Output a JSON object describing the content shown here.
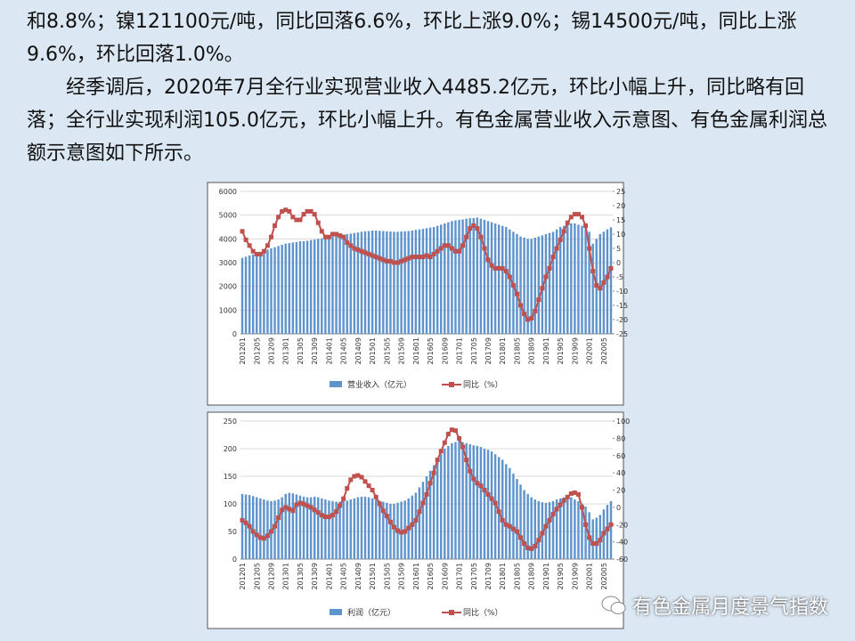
{
  "paragraphs": [
    "和8.8%；镍121100元/吨，同比回落6.6%，环比上涨9.0%；锡14500元/吨，同比上涨9.6%，环比回落1.0%。",
    "经季调后，2020年7月全行业实现营业收入4485.2亿元，环比小幅上升，同比略有回落；全行业实现利润105.0亿元，环比小幅上升。有色金属营业收入示意图、有色金属利润总额示意图如下所示。"
  ],
  "chart_data": [
    {
      "type": "combo",
      "grid": true,
      "categories": [
        "201201",
        null,
        null,
        null,
        "201205",
        null,
        null,
        null,
        "201209",
        null,
        null,
        null,
        "201301",
        null,
        null,
        null,
        "201305",
        null,
        null,
        null,
        "201309",
        null,
        null,
        null,
        "201401",
        null,
        null,
        null,
        "201405",
        null,
        null,
        null,
        "201409",
        null,
        null,
        null,
        "201501",
        null,
        null,
        null,
        "201505",
        null,
        null,
        null,
        "201509",
        null,
        null,
        null,
        "201601",
        null,
        null,
        null,
        "201605",
        null,
        null,
        null,
        "201609",
        null,
        null,
        null,
        "201701",
        null,
        null,
        null,
        "201705",
        null,
        null,
        null,
        "201709",
        null,
        null,
        null,
        "201801",
        null,
        null,
        null,
        "201805",
        null,
        null,
        null,
        "201809",
        null,
        null,
        null,
        "201901",
        null,
        null,
        null,
        "201905",
        null,
        null,
        null,
        "201909",
        null,
        null,
        null,
        "202001",
        null,
        null,
        null,
        "202005",
        null,
        null
      ],
      "ylim": [
        0,
        6000
      ],
      "yticks": [
        0,
        1000,
        2000,
        3000,
        4000,
        5000,
        6000
      ],
      "y2lim": [
        -25,
        25
      ],
      "y2ticks": [
        -25,
        -20,
        -15,
        -10,
        -5,
        0,
        5,
        10,
        15,
        20,
        25
      ],
      "series": [
        {
          "name": "营业收入（亿元）",
          "type": "bar",
          "color": "#5f93cc",
          "values": [
            3200,
            3250,
            3300,
            3350,
            3400,
            3450,
            3500,
            3550,
            3600,
            3650,
            3700,
            3750,
            3800,
            3820,
            3850,
            3870,
            3900,
            3900,
            3920,
            3950,
            3970,
            4000,
            4020,
            4050,
            4080,
            4100,
            4120,
            4150,
            4180,
            4200,
            4220,
            4250,
            4270,
            4300,
            4320,
            4330,
            4350,
            4350,
            4340,
            4330,
            4320,
            4310,
            4300,
            4300,
            4310,
            4320,
            4330,
            4350,
            4380,
            4400,
            4420,
            4450,
            4480,
            4500,
            4550,
            4600,
            4650,
            4700,
            4750,
            4780,
            4800,
            4820,
            4850,
            4870,
            4880,
            4900,
            4850,
            4800,
            4750,
            4700,
            4650,
            4600,
            4550,
            4500,
            4400,
            4300,
            4200,
            4100,
            4050,
            4000,
            4000,
            4050,
            4100,
            4150,
            4200,
            4250,
            4300,
            4400,
            4500,
            4550,
            4600,
            4650,
            4650,
            4600,
            4550,
            4500,
            4300,
            3800,
            4000,
            4200,
            4300,
            4400,
            4485.2
          ]
        },
        {
          "name": "同比（%）",
          "type": "line",
          "axis": "y2",
          "color": "#c0504d",
          "values": [
            11,
            8,
            6,
            4,
            3,
            3,
            4,
            6,
            9,
            13,
            16,
            18,
            18.5,
            18,
            16,
            15,
            15,
            17,
            18,
            18,
            17,
            14,
            11,
            9,
            9,
            10,
            10,
            9.5,
            9,
            7,
            6,
            5,
            4.5,
            4,
            3.5,
            3,
            2.5,
            2,
            1.5,
            1,
            0.5,
            0.5,
            0,
            0,
            0.5,
            1,
            1.5,
            2,
            2,
            2,
            2,
            2.5,
            2,
            3,
            4,
            5,
            6,
            6,
            5,
            4,
            4,
            6,
            9,
            12,
            13,
            12,
            9,
            5,
            1,
            -1,
            -2,
            -2,
            -2,
            -3,
            -5,
            -8,
            -11,
            -15,
            -18,
            -20,
            -19.5,
            -17,
            -13,
            -9,
            -5,
            -2,
            2,
            5,
            8,
            11,
            14,
            16,
            17,
            17,
            16,
            13,
            5,
            -3,
            -8,
            -9,
            -7,
            -5,
            -2
          ]
        }
      ]
    },
    {
      "type": "combo",
      "grid": true,
      "categories": [
        "201201",
        null,
        null,
        null,
        "201205",
        null,
        null,
        null,
        "201209",
        null,
        null,
        null,
        "201301",
        null,
        null,
        null,
        "201305",
        null,
        null,
        null,
        "201309",
        null,
        null,
        null,
        "201401",
        null,
        null,
        null,
        "201405",
        null,
        null,
        null,
        "201409",
        null,
        null,
        null,
        "201501",
        null,
        null,
        null,
        "201505",
        null,
        null,
        null,
        "201509",
        null,
        null,
        null,
        "201601",
        null,
        null,
        null,
        "201605",
        null,
        null,
        null,
        "201609",
        null,
        null,
        null,
        "201701",
        null,
        null,
        null,
        "201705",
        null,
        null,
        null,
        "201709",
        null,
        null,
        null,
        "201801",
        null,
        null,
        null,
        "201805",
        null,
        null,
        null,
        "201809",
        null,
        null,
        null,
        "201901",
        null,
        null,
        null,
        "201905",
        null,
        null,
        null,
        "201909",
        null,
        null,
        null,
        "202001",
        null,
        null,
        null,
        "202005",
        null,
        null
      ],
      "ylim": [
        0,
        250
      ],
      "yticks": [
        0,
        50,
        100,
        150,
        200,
        250
      ],
      "y2lim": [
        -60,
        100
      ],
      "y2ticks": [
        -60,
        -40,
        -20,
        0,
        20,
        40,
        60,
        80,
        100
      ],
      "series": [
        {
          "name": "利润（亿元）",
          "type": "bar",
          "color": "#5f93cc",
          "values": [
            118,
            117,
            116,
            114,
            112,
            110,
            108,
            106,
            105,
            106,
            108,
            112,
            118,
            120,
            119,
            117,
            115,
            113,
            112,
            112,
            113,
            112,
            110,
            108,
            106,
            105,
            104,
            104,
            105,
            106,
            108,
            110,
            112,
            113,
            113,
            112,
            110,
            108,
            106,
            104,
            102,
            100,
            100,
            102,
            104,
            106,
            110,
            115,
            120,
            130,
            140,
            150,
            160,
            170,
            180,
            190,
            200,
            205,
            210,
            212,
            215,
            212,
            210,
            208,
            206,
            205,
            203,
            200,
            198,
            195,
            190,
            185,
            180,
            172,
            165,
            155,
            145,
            135,
            125,
            118,
            112,
            108,
            105,
            103,
            102,
            103,
            105,
            108,
            110,
            112,
            115,
            112,
            108,
            105,
            100,
            95,
            85,
            72,
            75,
            80,
            90,
            98,
            105
          ]
        },
        {
          "name": "同比（%）",
          "type": "line",
          "axis": "y2",
          "color": "#c0504d",
          "values": [
            -15,
            -18,
            -22,
            -28,
            -32,
            -35,
            -36,
            -33,
            -28,
            -22,
            -12,
            -3,
            0,
            -2,
            -4,
            3,
            5,
            4,
            2,
            0,
            -3,
            -6,
            -9,
            -11,
            -11,
            -9,
            -5,
            2,
            10,
            22,
            32,
            36,
            37,
            35,
            30,
            25,
            20,
            12,
            4,
            -4,
            -10,
            -17,
            -23,
            -27,
            -29,
            -28,
            -24,
            -20,
            -15,
            -5,
            5,
            15,
            28,
            40,
            55,
            65,
            75,
            85,
            90,
            89,
            80,
            70,
            55,
            42,
            33,
            28,
            25,
            20,
            15,
            10,
            5,
            -5,
            -15,
            -20,
            -22,
            -25,
            -28,
            -35,
            -42,
            -47,
            -48,
            -45,
            -38,
            -30,
            -22,
            -15,
            -8,
            -2,
            3,
            8,
            12,
            16,
            17,
            15,
            0,
            -20,
            -35,
            -42,
            -42,
            -38,
            -30,
            -25,
            -20
          ]
        }
      ]
    }
  ],
  "watermark": "有色金属月度景气指数"
}
